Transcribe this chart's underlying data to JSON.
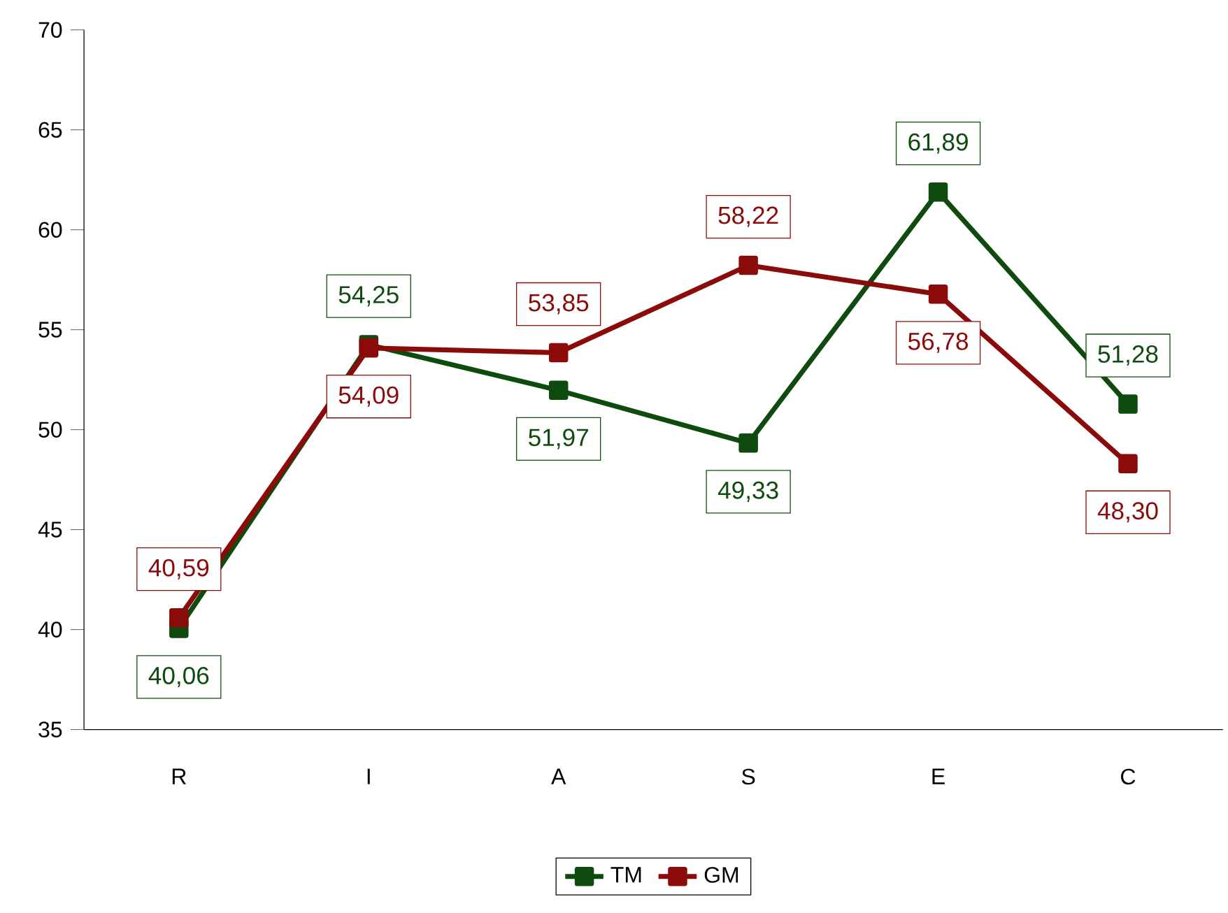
{
  "chart_data": {
    "type": "line",
    "categories": [
      "R",
      "I",
      "A",
      "S",
      "E",
      "C"
    ],
    "series": [
      {
        "name": "TM",
        "color": "#0f4a0f",
        "values": [
          40.06,
          54.25,
          51.97,
          49.33,
          61.89,
          51.28
        ],
        "value_labels": [
          "40,06",
          "54,25",
          "51,97",
          "49,33",
          "61,89",
          "51,28"
        ]
      },
      {
        "name": "GM",
        "color": "#8b0a0a",
        "values": [
          40.59,
          54.09,
          53.85,
          58.22,
          56.78,
          48.3
        ],
        "value_labels": [
          "40,59",
          "54,09",
          "53,85",
          "58,22",
          "56,78",
          "48,30"
        ]
      }
    ],
    "ylim": [
      35,
      70
    ],
    "yticks": [
      35,
      40,
      45,
      50,
      55,
      60,
      65,
      70
    ],
    "grid": false,
    "legend": "bottom",
    "marker": "square",
    "line_style": "solid"
  }
}
